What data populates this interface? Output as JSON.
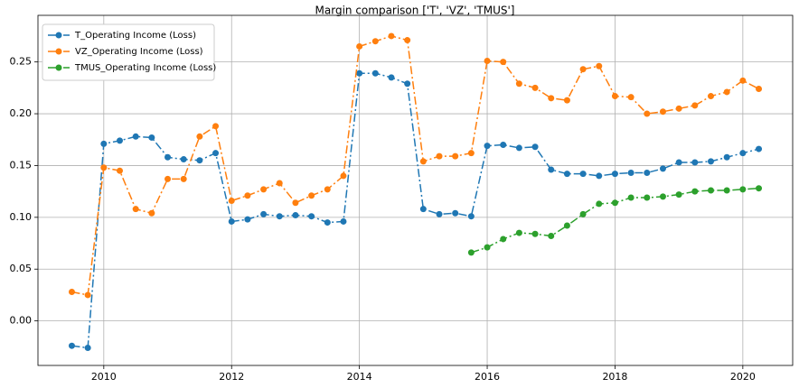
{
  "chart_data": {
    "type": "line",
    "title": "Margin comparison ['T', 'VZ', 'TMUS']",
    "x": [
      2009.5,
      2009.75,
      2010,
      2010.25,
      2010.5,
      2010.75,
      2011,
      2011.25,
      2011.5,
      2011.75,
      2012,
      2012.25,
      2012.5,
      2012.75,
      2013,
      2013.25,
      2013.5,
      2013.75,
      2014,
      2014.25,
      2014.5,
      2014.75,
      2015,
      2015.25,
      2015.5,
      2015.75,
      2016,
      2016.25,
      2016.5,
      2016.75,
      2017,
      2017.25,
      2017.5,
      2017.75,
      2018,
      2018.25,
      2018.5,
      2018.75,
      2019,
      2019.25,
      2019.5,
      2019.75,
      2020,
      2020.25
    ],
    "series": [
      {
        "name": "T_Operating Income (Loss)",
        "color": "#1f77b4",
        "values": [
          -0.024,
          -0.026,
          0.171,
          0.174,
          0.178,
          0.177,
          0.158,
          0.156,
          0.155,
          0.162,
          0.096,
          0.098,
          0.103,
          0.101,
          0.102,
          0.101,
          0.095,
          0.096,
          0.239,
          0.239,
          0.235,
          0.229,
          0.108,
          0.103,
          0.104,
          0.101,
          0.169,
          0.17,
          0.167,
          0.168,
          0.146,
          0.142,
          0.142,
          0.14,
          0.142,
          0.143,
          0.143,
          0.147,
          0.153,
          0.153,
          0.154,
          0.158,
          0.162,
          0.166
        ]
      },
      {
        "name": "VZ_Operating Income (Loss)",
        "color": "#ff7f0e",
        "values": [
          0.028,
          0.025,
          0.148,
          0.145,
          0.108,
          0.104,
          0.137,
          0.137,
          0.178,
          0.188,
          0.116,
          0.121,
          0.127,
          0.133,
          0.114,
          0.121,
          0.127,
          0.14,
          0.265,
          0.27,
          0.275,
          0.271,
          0.154,
          0.159,
          0.159,
          0.162,
          0.251,
          0.25,
          0.229,
          0.225,
          0.215,
          0.213,
          0.243,
          0.246,
          0.217,
          0.216,
          0.2,
          0.202,
          0.205,
          0.208,
          0.217,
          0.221,
          0.232,
          0.224
        ]
      },
      {
        "name": "TMUS_Operating Income (Loss)",
        "color": "#2ca02c",
        "values": [
          null,
          null,
          null,
          null,
          null,
          null,
          null,
          null,
          null,
          null,
          null,
          null,
          null,
          null,
          null,
          null,
          null,
          null,
          null,
          null,
          null,
          null,
          null,
          null,
          null,
          0.066,
          0.071,
          0.079,
          0.085,
          0.084,
          0.082,
          0.092,
          0.103,
          0.113,
          0.114,
          0.119,
          0.119,
          0.12,
          0.122,
          0.125,
          0.126,
          0.126,
          0.127,
          0.128
        ]
      }
    ],
    "xlim": [
      2008.97,
      2020.78
    ],
    "xticks": [
      2010,
      2012,
      2014,
      2016,
      2018,
      2020
    ],
    "ylim": [
      -0.043,
      0.295
    ],
    "yticks": [
      {
        "value": 0,
        "label": "0.00"
      },
      0.05,
      {
        "value": 0.1,
        "label": "0.10"
      },
      0.15,
      {
        "value": 0.2,
        "label": "0.20"
      },
      0.25
    ],
    "grid": true,
    "legend": "upper left"
  }
}
